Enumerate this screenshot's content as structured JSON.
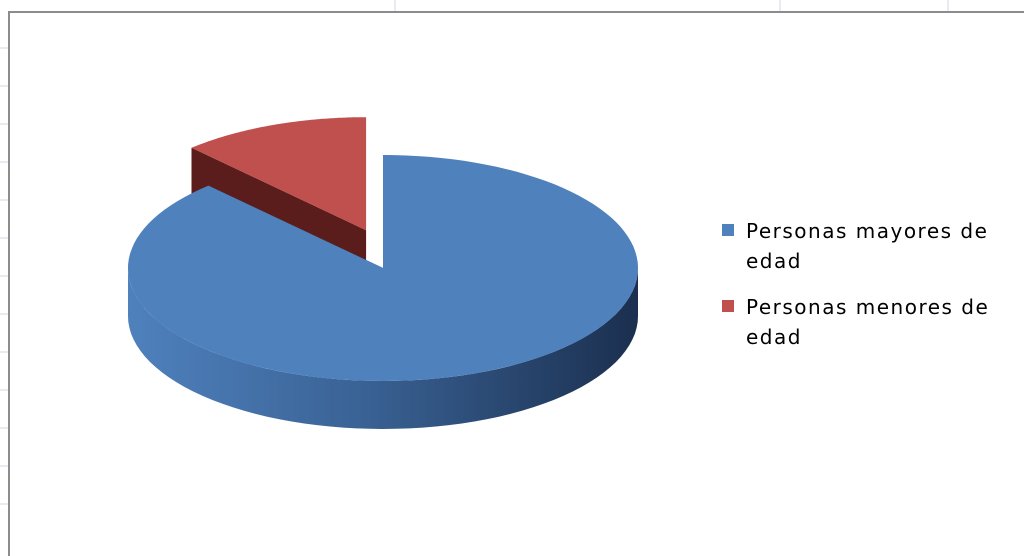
{
  "chart_data": {
    "type": "pie3d",
    "categories": [
      "Personas mayores de edad",
      "Personas menores de edad"
    ],
    "values": [
      88,
      12
    ],
    "colors": [
      "#4f81bd",
      "#c0504d"
    ],
    "side_colors": [
      "#2b4a74",
      "#5a1d1b"
    ],
    "exploded": [
      false,
      true
    ],
    "legend": "right"
  }
}
